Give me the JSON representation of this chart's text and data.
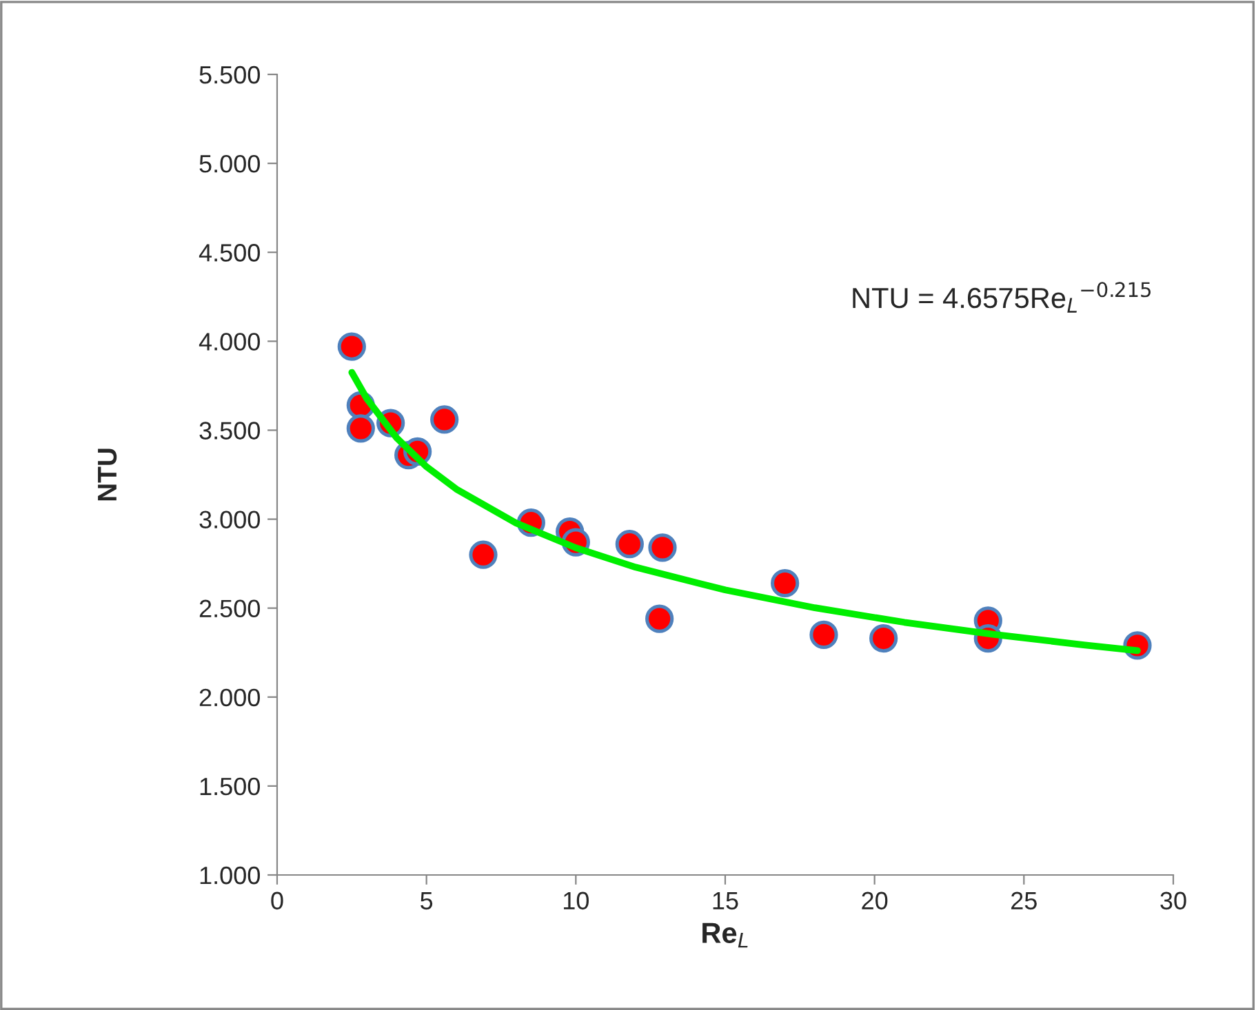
{
  "chart_data": {
    "type": "scatter",
    "xlabel": "Re$_{L}$",
    "ylabel": "NTU",
    "annotations": [
      "NTU = 4.6575Re$_{L}$$^{−0.215}$"
    ],
    "series": [
      {
        "color": "#ff0000",
        "marker": "circle",
        "x": [
          2.5,
          2.8,
          2.8,
          3.8,
          4.4,
          4.7,
          5.6,
          6.9,
          8.5,
          9.8,
          10.0,
          11.8,
          12.9,
          12.8,
          17.0,
          18.3,
          20.3,
          23.8,
          23.8,
          28.8
        ],
        "values": [
          3.97,
          3.64,
          3.51,
          3.54,
          3.36,
          3.38,
          3.56,
          2.8,
          2.98,
          2.93,
          2.87,
          2.86,
          2.84,
          2.44,
          2.64,
          2.35,
          2.33,
          2.43,
          2.33,
          2.29
        ]
      },
      {
        "type": "line",
        "color": "#00ee00",
        "marker": "none",
        "line_style": "solid",
        "x": [
          2.5,
          3,
          4,
          5,
          6,
          8,
          10,
          12,
          15,
          18,
          21,
          24,
          27,
          28.8
        ],
        "values": [
          3.825,
          3.678,
          3.457,
          3.295,
          3.169,
          2.978,
          2.839,
          2.73,
          2.602,
          2.502,
          2.42,
          2.352,
          2.293,
          2.261
        ]
      }
    ],
    "xlim": [
      0,
      30
    ],
    "xticks": [
      0,
      5,
      10,
      15,
      20,
      25,
      30
    ],
    "ylim": [
      1.0,
      5.5
    ],
    "yticks": [
      {
        "value": 1.0,
        "label": "1.000"
      },
      {
        "value": 1.5,
        "label": "1.500"
      },
      {
        "value": 2.0,
        "label": "2.000"
      },
      {
        "value": 2.5,
        "label": "2.500"
      },
      {
        "value": 3.0,
        "label": "3.000"
      },
      {
        "value": 3.5,
        "label": "3.500"
      },
      {
        "value": 4.0,
        "label": "4.000"
      },
      {
        "value": 4.5,
        "label": "4.500"
      },
      {
        "value": 5.0,
        "label": "5.000"
      },
      {
        "value": 5.5,
        "label": "5.500"
      }
    ],
    "grid": false,
    "legend": false
  }
}
